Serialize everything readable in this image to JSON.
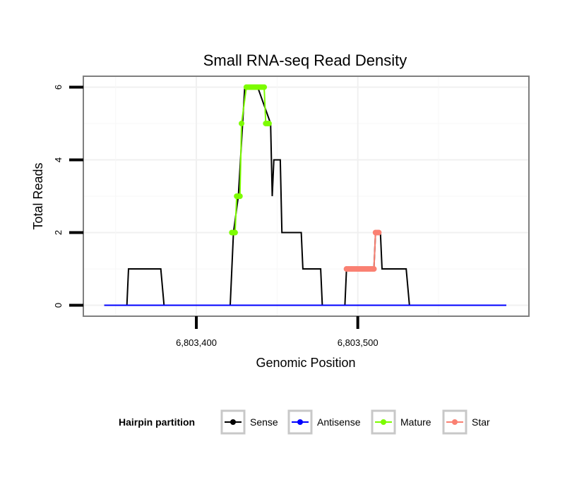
{
  "chart_data": {
    "type": "line",
    "title": "Small RNA-seq Read Density",
    "xlabel": "Genomic Position",
    "ylabel": "Total Reads",
    "xlim": [
      6803330,
      6803606
    ],
    "ylim": [
      -0.3,
      6.3
    ],
    "x_ticks": [
      {
        "value": 6803400,
        "label": "6,803,400"
      },
      {
        "value": 6803500,
        "label": "6,803,500"
      }
    ],
    "y_ticks": [
      {
        "value": 0,
        "label": "0"
      },
      {
        "value": 2,
        "label": "2"
      },
      {
        "value": 4,
        "label": "4"
      },
      {
        "value": 6,
        "label": "6"
      }
    ],
    "grid": true,
    "legend": {
      "title": "Hairpin partition",
      "position": "bottom",
      "entries": [
        {
          "name": "Sense",
          "color": "#000000"
        },
        {
          "name": "Antisense",
          "color": "#0000ff"
        },
        {
          "name": "Mature",
          "color": "#7cfc00"
        },
        {
          "name": "Star",
          "color": "#fa8072"
        }
      ]
    },
    "series": [
      {
        "name": "Sense",
        "color": "#000000",
        "marker": false,
        "x": [
          6803343,
          6803357,
          6803358,
          6803378,
          6803380,
          6803421,
          6803423,
          6803426,
          6803430,
          6803438,
          6803446,
          6803447,
          6803448,
          6803452,
          6803453,
          6803465,
          6803466,
          6803477,
          6803478,
          6803492,
          6803493,
          6803510,
          6803511,
          6803514,
          6803515,
          6803530,
          6803532,
          6803592
        ],
        "y": [
          0,
          0,
          1,
          1,
          0,
          0,
          2,
          3,
          6,
          6,
          5,
          3,
          4,
          4,
          2,
          2,
          1,
          1,
          0,
          0,
          1,
          1,
          2,
          2,
          1,
          1,
          0,
          0
        ]
      },
      {
        "name": "Antisense",
        "color": "#0000ff",
        "marker": false,
        "x": [
          6803343,
          6803592
        ],
        "y": [
          0,
          0
        ]
      },
      {
        "name": "Mature",
        "color": "#7cfc00",
        "marker": true,
        "x": [
          6803422,
          6803423,
          6803424,
          6803425,
          6803426,
          6803427,
          6803428,
          6803431,
          6803432,
          6803433,
          6803434,
          6803435,
          6803436,
          6803437,
          6803438,
          6803439,
          6803440,
          6803441,
          6803442,
          6803443,
          6803444,
          6803445
        ],
        "y": [
          2,
          2,
          2,
          3,
          3,
          3,
          5,
          6,
          6,
          6,
          6,
          6,
          6,
          6,
          6,
          6,
          6,
          6,
          6,
          5,
          5,
          5
        ]
      },
      {
        "name": "Star",
        "color": "#fa8072",
        "marker": true,
        "x": [
          6803493,
          6803494,
          6803495,
          6803496,
          6803497,
          6803498,
          6803499,
          6803500,
          6803501,
          6803502,
          6803503,
          6803504,
          6803505,
          6803506,
          6803507,
          6803508,
          6803509,
          6803510,
          6803511,
          6803512,
          6803513
        ],
        "y": [
          1,
          1,
          1,
          1,
          1,
          1,
          1,
          1,
          1,
          1,
          1,
          1,
          1,
          1,
          1,
          1,
          1,
          1,
          2,
          2,
          2
        ]
      }
    ]
  }
}
